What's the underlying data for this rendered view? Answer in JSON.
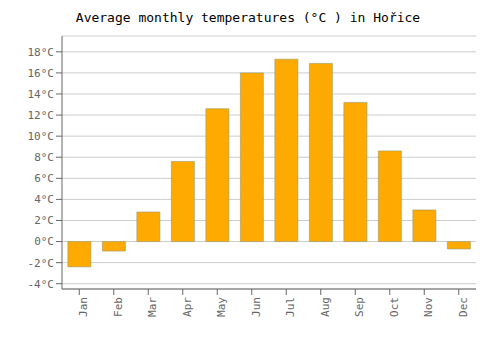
{
  "chart_data": {
    "type": "bar",
    "title": "Average monthly temperatures (°C ) in Hořice",
    "categories": [
      "Jan",
      "Feb",
      "Mar",
      "Apr",
      "May",
      "Jun",
      "Jul",
      "Aug",
      "Sep",
      "Oct",
      "Nov",
      "Dec"
    ],
    "values": [
      -2.4,
      -0.9,
      2.8,
      7.6,
      12.6,
      16.0,
      17.3,
      16.9,
      13.2,
      8.6,
      3.0,
      -0.7
    ],
    "color": "#FFAA00",
    "ylim": [
      -4.5,
      19.5
    ],
    "yticks": [
      {
        "value": -4,
        "label": "-4°C"
      },
      {
        "value": -2,
        "label": "-2°C"
      },
      {
        "value": 0,
        "label": "0°C"
      },
      {
        "value": 2,
        "label": "2°C"
      },
      {
        "value": 4,
        "label": "4°C"
      },
      {
        "value": 6,
        "label": "6°C"
      },
      {
        "value": 8,
        "label": "8°C"
      },
      {
        "value": 10,
        "label": "10°C"
      },
      {
        "value": 12,
        "label": "12°C"
      },
      {
        "value": 14,
        "label": "14°C"
      },
      {
        "value": 16,
        "label": "16°C"
      },
      {
        "value": 18,
        "label": "18°C"
      }
    ],
    "grid": true
  }
}
